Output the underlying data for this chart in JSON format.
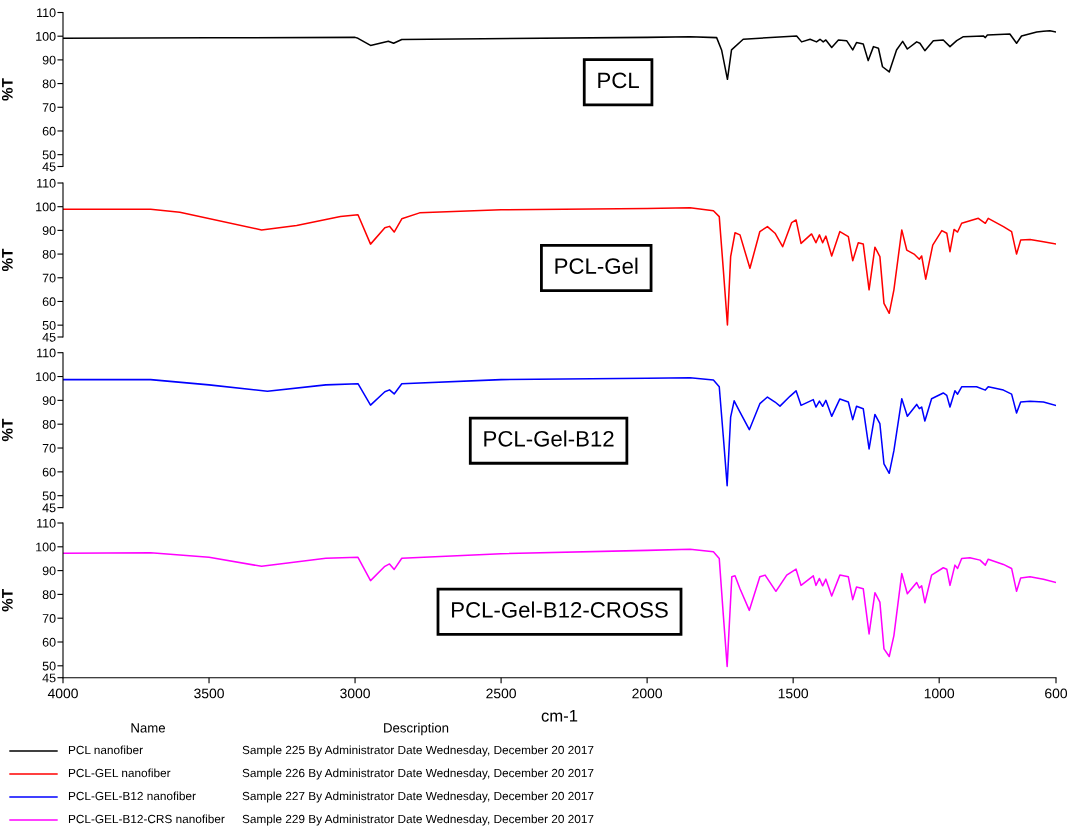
{
  "chart_data": [
    {
      "type": "line",
      "ylabel": "%T",
      "xlim": [
        4000,
        600
      ],
      "ylim": [
        45,
        110
      ],
      "yticks": [
        45,
        50,
        60,
        70,
        80,
        90,
        100,
        110
      ],
      "tick_labels": "y",
      "legend": "bottom",
      "grid": false,
      "annotations": [
        "PCL",
        "Sample 225 By Administrator Date Wednesday, December 20 2017"
      ],
      "series": [
        {
          "name": "PCL nanofiber",
          "color": "#000000",
          "x": [
            4000,
            3500,
            3000,
            2990,
            2947,
            2886,
            2868,
            2840,
            2000,
            1853,
            1762,
            1745,
            1725,
            1711,
            1671,
            1488,
            1471,
            1442,
            1420,
            1408,
            1397,
            1388,
            1368,
            1345,
            1317,
            1296,
            1283,
            1260,
            1243,
            1225,
            1208,
            1194,
            1171,
            1146,
            1125,
            1109,
            1077,
            1066,
            1049,
            1020,
            986,
            963,
            940,
            917,
            849,
            842,
            835,
            758,
            735,
            718,
            666,
            643,
            621,
            601
          ],
          "values": [
            99.1,
            99.3,
            99.5,
            99.1,
            96.1,
            97.9,
            97.0,
            98.6,
            99.5,
            99.8,
            99.4,
            94.2,
            81.8,
            94.2,
            98.7,
            100.1,
            97.6,
            98.7,
            97.6,
            98.7,
            97.6,
            98.4,
            95.2,
            98.4,
            98.1,
            94.2,
            97.3,
            96.7,
            89.7,
            95.6,
            94.9,
            87.1,
            84.9,
            94.2,
            97.8,
            94.6,
            97.6,
            97.0,
            93.9,
            98.1,
            98.4,
            95.6,
            98.1,
            99.8,
            100.1,
            99.4,
            100.5,
            100.9,
            97.0,
            100.1,
            101.8,
            102.1,
            102.3,
            101.8
          ]
        }
      ]
    },
    {
      "type": "line",
      "ylabel": "%T",
      "xlim": [
        4000,
        600
      ],
      "ylim": [
        45,
        110
      ],
      "yticks": [
        45,
        50,
        60,
        70,
        80,
        90,
        100,
        110
      ],
      "tick_labels": "y",
      "legend": "bottom",
      "grid": false,
      "annotations": [
        "PCL-Gel",
        "Sample 226 By Administrator Date Wednesday, December 20 2017"
      ],
      "series": [
        {
          "name": "PCL-GEL nanofiber",
          "color": "#ff0000",
          "x": [
            4000,
            3700,
            3600,
            3320,
            3200,
            3050,
            2990,
            2947,
            2898,
            2882,
            2866,
            2840,
            2779,
            2500,
            2000,
            1853,
            1773,
            1753,
            1739,
            1725,
            1714,
            1699,
            1682,
            1648,
            1614,
            1588,
            1562,
            1536,
            1505,
            1490,
            1473,
            1437,
            1422,
            1410,
            1399,
            1388,
            1368,
            1340,
            1311,
            1296,
            1277,
            1260,
            1240,
            1220,
            1203,
            1189,
            1171,
            1155,
            1128,
            1111,
            1086,
            1068,
            1060,
            1046,
            1022,
            991,
            974,
            963,
            949,
            937,
            923,
            866,
            842,
            832,
            780,
            752,
            735,
            721,
            689,
            643,
            601
          ],
          "values": [
            98.9,
            98.9,
            97.7,
            90.2,
            92.1,
            95.9,
            96.6,
            84.2,
            91.1,
            91.7,
            89.3,
            94.9,
            97.4,
            98.7,
            99.2,
            99.6,
            98.3,
            95.8,
            73.3,
            50.1,
            78.9,
            89.0,
            88.1,
            74.0,
            89.5,
            91.6,
            88.8,
            83.1,
            93.3,
            94.4,
            84.5,
            88.5,
            84.8,
            88.1,
            84.8,
            87.6,
            79.2,
            89.5,
            87.4,
            77.2,
            84.8,
            84.3,
            64.9,
            82.9,
            78.9,
            59.2,
            55.0,
            64.9,
            90.2,
            81.7,
            80.0,
            77.8,
            79.2,
            69.4,
            83.8,
            89.9,
            88.8,
            81.0,
            90.4,
            89.3,
            93.0,
            95.1,
            93.0,
            95.1,
            91.6,
            89.5,
            80.0,
            85.9,
            86.2,
            85.2,
            84.3
          ]
        }
      ]
    },
    {
      "type": "line",
      "ylabel": "%T",
      "xlim": [
        4000,
        600
      ],
      "ylim": [
        45,
        110
      ],
      "yticks": [
        45,
        50,
        60,
        70,
        80,
        90,
        100,
        110
      ],
      "tick_labels": "y",
      "legend": "bottom",
      "grid": false,
      "annotations": [
        "PCL-Gel-B12",
        "Sample 227 By Administrator Date Wednesday, December 20 2017"
      ],
      "series": [
        {
          "name": "PCL-GEL-B12 nanofiber",
          "color": "#0000ff",
          "x": [
            4000,
            3700,
            3500,
            3300,
            3100,
            2990,
            2947,
            2898,
            2882,
            2866,
            2840,
            2500,
            2000,
            1853,
            1773,
            1753,
            1739,
            1726,
            1714,
            1702,
            1682,
            1650,
            1614,
            1588,
            1562,
            1545,
            1511,
            1490,
            1473,
            1431,
            1422,
            1410,
            1399,
            1388,
            1368,
            1340,
            1311,
            1296,
            1283,
            1260,
            1240,
            1220,
            1203,
            1189,
            1171,
            1155,
            1128,
            1109,
            1077,
            1068,
            1060,
            1049,
            1026,
            986,
            974,
            963,
            946,
            937,
            923,
            872,
            842,
            832,
            780,
            752,
            735,
            721,
            689,
            643,
            601
          ],
          "values": [
            98.7,
            98.7,
            96.5,
            93.8,
            96.5,
            97.0,
            88.0,
            93.6,
            94.4,
            92.7,
            97.0,
            98.7,
            99.3,
            99.5,
            98.5,
            95.7,
            74.6,
            54.2,
            83.0,
            89.8,
            85.1,
            77.7,
            88.6,
            91.4,
            89.3,
            87.6,
            91.7,
            94.0,
            87.9,
            90.3,
            87.2,
            89.7,
            87.5,
            90.0,
            83.3,
            90.6,
            89.3,
            81.9,
            87.5,
            86.5,
            69.6,
            84.1,
            80.2,
            63.3,
            59.4,
            68.9,
            90.7,
            83.3,
            88.3,
            86.5,
            87.2,
            81.3,
            90.7,
            93.1,
            92.1,
            87.2,
            94.0,
            92.6,
            95.7,
            95.7,
            94.3,
            95.7,
            94.3,
            92.6,
            84.7,
            89.3,
            89.6,
            89.3,
            87.9
          ]
        }
      ]
    },
    {
      "type": "line",
      "ylabel": "%T",
      "xlabel": "cm-1",
      "xlim": [
        4000,
        600
      ],
      "xticks": [
        4000,
        3500,
        3000,
        2500,
        2000,
        1500,
        1000,
        600
      ],
      "ylim": [
        45,
        110
      ],
      "yticks": [
        45,
        50,
        60,
        70,
        80,
        90,
        100,
        110
      ],
      "legend": "bottom",
      "grid": false,
      "annotations": [
        "PCL-Gel-B12-CROSS",
        "Sample 229 By Administrator Date Wednesday, December 20 2017",
        "Name",
        "Description"
      ],
      "series": [
        {
          "name": "PCL-GEL-B12-CRS nanofiber",
          "color": "#ff00ff",
          "x": [
            4000,
            3700,
            3500,
            3320,
            3100,
            2990,
            2947,
            2898,
            2882,
            2866,
            2840,
            2500,
            2000,
            1853,
            1773,
            1753,
            1739,
            1726,
            1710,
            1699,
            1682,
            1650,
            1614,
            1596,
            1559,
            1522,
            1490,
            1473,
            1431,
            1422,
            1410,
            1399,
            1388,
            1368,
            1340,
            1311,
            1296,
            1283,
            1260,
            1240,
            1220,
            1203,
            1189,
            1171,
            1155,
            1128,
            1109,
            1077,
            1068,
            1060,
            1049,
            1026,
            986,
            974,
            963,
            946,
            937,
            923,
            895,
            860,
            842,
            832,
            780,
            752,
            735,
            721,
            689,
            643,
            601
          ],
          "values": [
            97.3,
            97.5,
            95.6,
            91.8,
            95.2,
            95.6,
            85.8,
            91.8,
            92.8,
            90.5,
            95.2,
            97.1,
            98.5,
            99.0,
            97.9,
            95.1,
            71.2,
            49.7,
            87.4,
            87.8,
            82.4,
            73.3,
            87.4,
            88.1,
            81.3,
            88.1,
            90.6,
            83.8,
            87.8,
            83.8,
            86.7,
            83.6,
            86.4,
            79.3,
            88.1,
            87.4,
            77.8,
            83.1,
            82.4,
            63.4,
            80.7,
            76.8,
            57.1,
            53.9,
            62.7,
            88.8,
            80.3,
            85.0,
            82.7,
            83.6,
            76.5,
            88.1,
            91.2,
            90.6,
            83.8,
            92.3,
            90.9,
            95.1,
            95.4,
            94.4,
            92.3,
            94.8,
            92.6,
            90.9,
            81.3,
            86.9,
            87.4,
            86.4,
            85.0
          ]
        }
      ]
    }
  ]
}
